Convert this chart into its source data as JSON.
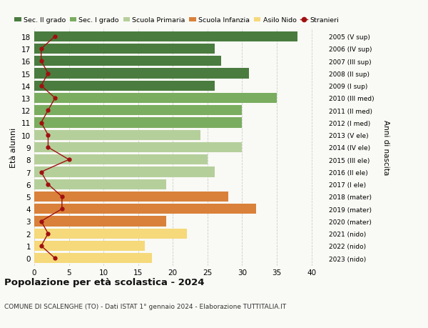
{
  "ages": [
    18,
    17,
    16,
    15,
    14,
    13,
    12,
    11,
    10,
    9,
    8,
    7,
    6,
    5,
    4,
    3,
    2,
    1,
    0
  ],
  "years": [
    "2005 (V sup)",
    "2006 (IV sup)",
    "2007 (III sup)",
    "2008 (II sup)",
    "2009 (I sup)",
    "2010 (III med)",
    "2011 (II med)",
    "2012 (I med)",
    "2013 (V ele)",
    "2014 (IV ele)",
    "2015 (III ele)",
    "2016 (II ele)",
    "2017 (I ele)",
    "2018 (mater)",
    "2019 (mater)",
    "2020 (mater)",
    "2021 (nido)",
    "2022 (nido)",
    "2023 (nido)"
  ],
  "bar_values": [
    38,
    26,
    27,
    31,
    26,
    35,
    30,
    30,
    24,
    30,
    25,
    26,
    19,
    28,
    32,
    19,
    22,
    16,
    17
  ],
  "bar_colors": [
    "#4a7c3f",
    "#4a7c3f",
    "#4a7c3f",
    "#4a7c3f",
    "#4a7c3f",
    "#7aad5f",
    "#7aad5f",
    "#7aad5f",
    "#b5cf9b",
    "#b5cf9b",
    "#b5cf9b",
    "#b5cf9b",
    "#b5cf9b",
    "#d9813a",
    "#d9813a",
    "#d9813a",
    "#f5d97a",
    "#f5d97a",
    "#f5d97a"
  ],
  "stranieri_values": [
    3,
    1,
    1,
    2,
    1,
    3,
    2,
    1,
    2,
    2,
    5,
    1,
    2,
    4,
    4,
    1,
    2,
    1,
    3
  ],
  "stranieri_color": "#a01010",
  "legend_labels": [
    "Sec. II grado",
    "Sec. I grado",
    "Scuola Primaria",
    "Scuola Infanzia",
    "Asilo Nido",
    "Stranieri"
  ],
  "legend_colors": [
    "#4a7c3f",
    "#7aad5f",
    "#b5cf9b",
    "#d9813a",
    "#f5d97a",
    "#a01010"
  ],
  "ylabel": "Età alunni",
  "ylabel_right": "Anni di nascita",
  "title": "Popolazione per età scolastica - 2024",
  "subtitle": "COMUNE DI SCALENGHE (TO) - Dati ISTAT 1° gennaio 2024 - Elaborazione TUTTITALIA.IT",
  "xlim": [
    0,
    42
  ],
  "background_color": "#f9f9f5",
  "grid_color": "#cccccc"
}
